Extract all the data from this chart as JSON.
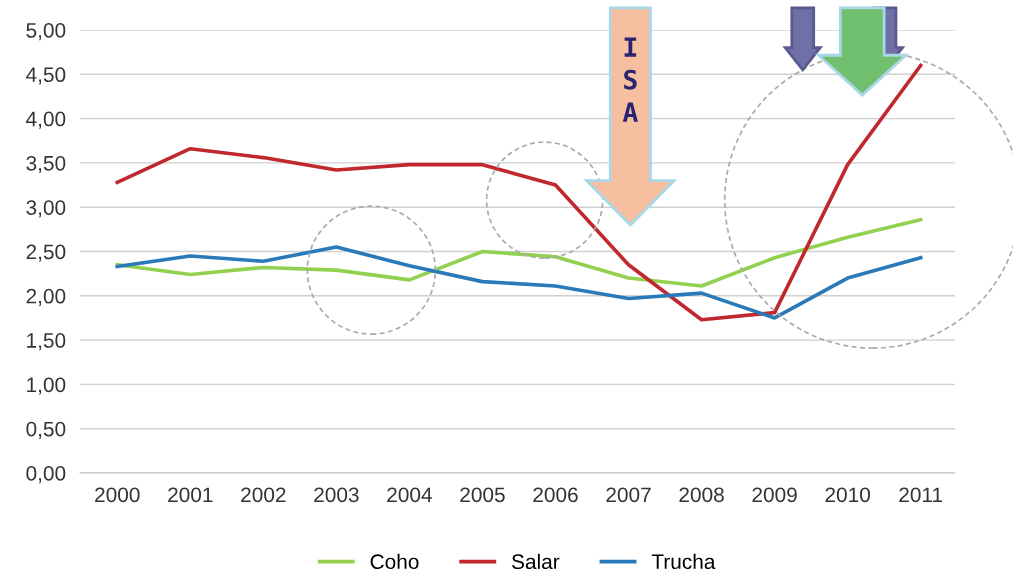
{
  "chart_data": {
    "type": "line",
    "categories": [
      "2000",
      "2001",
      "2002",
      "2003",
      "2004",
      "2005",
      "2006",
      "2007",
      "2008",
      "2009",
      "2010",
      "2011"
    ],
    "series": [
      {
        "name": "Coho",
        "color": "#92d050",
        "values": [
          2.35,
          2.24,
          2.32,
          2.29,
          2.18,
          2.5,
          2.44,
          2.2,
          2.11,
          2.43,
          2.66,
          2.86
        ]
      },
      {
        "name": "Salar",
        "color": "#c0282d",
        "values": [
          3.28,
          3.66,
          3.56,
          3.42,
          3.48,
          3.48,
          3.25,
          2.35,
          1.73,
          1.81,
          3.48,
          4.6
        ]
      },
      {
        "name": "Trucha",
        "color": "#2a7ab9",
        "values": [
          2.33,
          2.45,
          2.39,
          2.55,
          2.34,
          2.16,
          2.11,
          1.97,
          2.03,
          1.75,
          2.2,
          2.43
        ]
      }
    ],
    "ylim": [
      0,
      5
    ],
    "yticks": [
      {
        "value": 0,
        "label": "0,00"
      },
      {
        "value": 0.5,
        "label": "0,50"
      },
      {
        "value": 1,
        "label": "1,00"
      },
      {
        "value": 1.5,
        "label": "1,50"
      },
      {
        "value": 2,
        "label": "2,00"
      },
      {
        "value": 2.5,
        "label": "2,50"
      },
      {
        "value": 3,
        "label": "3,00"
      },
      {
        "value": 3.5,
        "label": "3,50"
      },
      {
        "value": 4,
        "label": "4,00"
      },
      {
        "value": 4.5,
        "label": "4,50"
      },
      {
        "value": 5,
        "label": "5,00"
      }
    ],
    "grid": "y",
    "legend": "bottom",
    "marker": "none",
    "line_style": "solid",
    "annotations": [
      "ISA"
    ]
  }
}
